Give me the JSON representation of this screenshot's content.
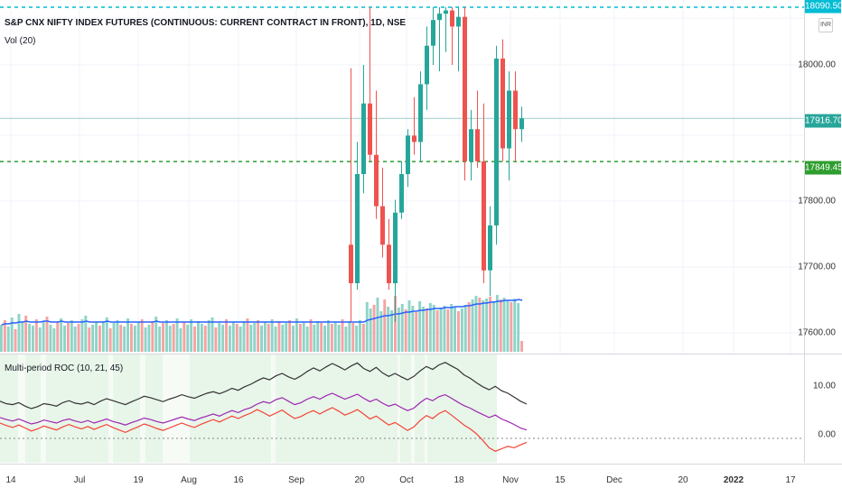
{
  "header": {
    "title": "S&P CNX NIFTY INDEX FUTURES (CONTINUOUS: CURRENT CONTRACT IN FRONT), 1D, NSE",
    "volume_label": "Vol (20)",
    "roc_label": "Multi-period ROC (10, 21, 45)",
    "currency": "INR"
  },
  "price_scale": {
    "labels": [
      "18000.00",
      "17800.00",
      "17700.00",
      "17600.00"
    ],
    "top_label": "18090.50",
    "last_price": "17916.70",
    "dotted_level": "17849.45"
  },
  "roc_scale": {
    "labels": [
      "10.00",
      "0.00"
    ]
  },
  "time_axis": {
    "labels": [
      "14",
      "Jul",
      "19",
      "Aug",
      "16",
      "Sep",
      "20",
      "Oct",
      "18",
      "Nov",
      "15",
      "Dec",
      "20",
      "2022",
      "17"
    ]
  },
  "colors": {
    "up": "#26a69a",
    "down": "#ef5350",
    "vol_up": "#8fd3c8",
    "vol_down": "#f5a3a1",
    "vol_ma": "#2962ff",
    "last_price_bg": "#26a69a",
    "dotted_green": "#2e9e2e",
    "dotted_cyan": "#00bcd4",
    "roc_black": "#333333",
    "roc_purple": "#9c27b0",
    "roc_red": "#f44336",
    "roc_zone": "#e8f5e9"
  },
  "chart_data": {
    "type": "candlestick",
    "price_range": [
      17570,
      18090
    ],
    "candles": [
      {
        "o": 17720,
        "h": 17995,
        "l": 17600,
        "c": 17660
      },
      {
        "o": 17660,
        "h": 17880,
        "l": 17650,
        "c": 17830
      },
      {
        "o": 17830,
        "h": 18000,
        "l": 17800,
        "c": 17940
      },
      {
        "o": 17940,
        "h": 18090,
        "l": 17850,
        "c": 17860
      },
      {
        "o": 17860,
        "h": 17960,
        "l": 17760,
        "c": 17780
      },
      {
        "o": 17780,
        "h": 17840,
        "l": 17700,
        "c": 17720
      },
      {
        "o": 17720,
        "h": 17760,
        "l": 17650,
        "c": 17660
      },
      {
        "o": 17660,
        "h": 17790,
        "l": 17600,
        "c": 17770
      },
      {
        "o": 17770,
        "h": 17850,
        "l": 17760,
        "c": 17830
      },
      {
        "o": 17830,
        "h": 17900,
        "l": 17810,
        "c": 17890
      },
      {
        "o": 17890,
        "h": 17950,
        "l": 17860,
        "c": 17880
      },
      {
        "o": 17880,
        "h": 17990,
        "l": 17850,
        "c": 17970
      },
      {
        "o": 17970,
        "h": 18060,
        "l": 17930,
        "c": 18030
      },
      {
        "o": 18030,
        "h": 18090,
        "l": 18000,
        "c": 18070
      },
      {
        "o": 18070,
        "h": 18090,
        "l": 17990,
        "c": 18080
      },
      {
        "o": 18080,
        "h": 18090,
        "l": 18020,
        "c": 18085
      },
      {
        "o": 18085,
        "h": 18090,
        "l": 18000,
        "c": 18060
      },
      {
        "o": 18060,
        "h": 18090,
        "l": 17990,
        "c": 18075
      },
      {
        "o": 18075,
        "h": 18090,
        "l": 17820,
        "c": 17850
      },
      {
        "o": 17850,
        "h": 17930,
        "l": 17820,
        "c": 17900
      },
      {
        "o": 17900,
        "h": 17960,
        "l": 17840,
        "c": 17850
      },
      {
        "o": 17850,
        "h": 17940,
        "l": 17660,
        "c": 17680
      },
      {
        "o": 17680,
        "h": 17780,
        "l": 17640,
        "c": 17750
      },
      {
        "o": 17750,
        "h": 18030,
        "l": 17720,
        "c": 18010
      },
      {
        "o": 18010,
        "h": 18040,
        "l": 17850,
        "c": 17870
      },
      {
        "o": 17870,
        "h": 17990,
        "l": 17820,
        "c": 17960
      },
      {
        "o": 17960,
        "h": 17990,
        "l": 17850,
        "c": 17900
      },
      {
        "o": 17900,
        "h": 17935,
        "l": 17880,
        "c": 17916.7
      }
    ],
    "volume": {
      "range": [
        0,
        100
      ],
      "bars": [
        30,
        35,
        28,
        38,
        25,
        42,
        33,
        40,
        31,
        29,
        36,
        27,
        34,
        39,
        30,
        26,
        33,
        37,
        29,
        32,
        35,
        28,
        31,
        36,
        40,
        27,
        30,
        33,
        29,
        34,
        38,
        26,
        32,
        35,
        30,
        28,
        37,
        31,
        29,
        33,
        36,
        27,
        30,
        34,
        39,
        28,
        32,
        35,
        29,
        31,
        37,
        26,
        33,
        30,
        36,
        28,
        34,
        31,
        29,
        35,
        38,
        27,
        32,
        30,
        36,
        29,
        33,
        31,
        28,
        34,
        37,
        30,
        32,
        35,
        29,
        33,
        31,
        36,
        28,
        34,
        30,
        32,
        35,
        29,
        37,
        31,
        33,
        28,
        36,
        30,
        34,
        32,
        29,
        35,
        31,
        33,
        30,
        36,
        28,
        34,
        32,
        29,
        35,
        31,
        55,
        48,
        52,
        60,
        45,
        58,
        50,
        46,
        62,
        49,
        53,
        47,
        57,
        51,
        44,
        56,
        50,
        48,
        54,
        52,
        46,
        49,
        51,
        47,
        53,
        50,
        45,
        48,
        52,
        55,
        58,
        62,
        60,
        57,
        59,
        61,
        56,
        63,
        58,
        60,
        57,
        55,
        59,
        54,
        12
      ],
      "ma": [
        30,
        31,
        31,
        32,
        32,
        33,
        33,
        34,
        33,
        33,
        33,
        33,
        34,
        34,
        33,
        33,
        33,
        34,
        33,
        33,
        33,
        33,
        33,
        33,
        34,
        33,
        33,
        33,
        33,
        33,
        34,
        33,
        33,
        33,
        33,
        33,
        33,
        33,
        33,
        33,
        33,
        33,
        33,
        33,
        34,
        33,
        33,
        33,
        33,
        33,
        33,
        33,
        33,
        33,
        33,
        33,
        33,
        33,
        33,
        33,
        33,
        33,
        33,
        33,
        33,
        33,
        33,
        33,
        33,
        33,
        33,
        33,
        33,
        33,
        33,
        33,
        33,
        33,
        33,
        33,
        33,
        33,
        33,
        33,
        33,
        33,
        33,
        33,
        33,
        33,
        33,
        33,
        33,
        33,
        33,
        33,
        33,
        33,
        33,
        33,
        33,
        33,
        33,
        33,
        35,
        36,
        37,
        38,
        39,
        40,
        40,
        41,
        42,
        42,
        43,
        44,
        44,
        45,
        45,
        46,
        46,
        47,
        47,
        48,
        48,
        48,
        49,
        49,
        49,
        50,
        50,
        50,
        51,
        51,
        52,
        53,
        53,
        54,
        54,
        55,
        55,
        56,
        56,
        57,
        57,
        57,
        57,
        58,
        57
      ]
    },
    "roc": {
      "range": [
        -4,
        16
      ],
      "zero": 0,
      "series": [
        {
          "values": [
            7.5,
            7,
            6.8,
            7.2,
            6.5,
            6,
            6.4,
            7,
            6.8,
            6.5,
            7.2,
            7.6,
            7.1,
            6.9,
            7.3,
            6.8,
            7.5,
            8,
            7.6,
            7.2,
            6.8,
            7.4,
            7.9,
            8.5,
            8.2,
            7.8,
            7.4,
            7.9,
            8.3,
            8.8,
            8.4,
            8.1,
            8.6,
            9.1,
            9.4,
            9,
            9.5,
            10.1,
            9.7,
            10.4,
            10.9,
            11.6,
            12.2,
            11.8,
            12.6,
            13.1,
            12.4,
            11.9,
            12.6,
            13.5,
            14.2,
            13.6,
            14.4,
            15.1,
            14.5,
            13.8,
            14.6,
            15.2,
            14.1,
            13.5,
            14.3,
            13.2,
            12.5,
            13.1,
            12.4,
            11.8,
            12.5,
            13.6,
            14.5,
            13.9,
            14.8,
            15.3,
            14.6,
            13.9,
            12.8,
            12.1,
            11.2,
            10.4,
            9.8,
            10.5,
            9.6,
            9.1,
            8.3,
            7.5,
            6.9
          ]
        },
        {
          "values": [
            4.2,
            3.8,
            3.5,
            3.9,
            3.4,
            2.9,
            3.2,
            3.7,
            3.4,
            3.1,
            3.6,
            3.9,
            3.5,
            3.2,
            3.6,
            3.1,
            3.5,
            3.9,
            3.4,
            3.1,
            2.7,
            3.2,
            3.6,
            4.1,
            3.8,
            3.4,
            3.1,
            3.5,
            3.9,
            4.3,
            3.9,
            3.6,
            4.1,
            4.5,
            4.9,
            4.5,
            5.1,
            5.6,
            5.2,
            5.8,
            6.2,
            6.9,
            7.4,
            7.1,
            7.8,
            8.2,
            7.5,
            6.8,
            7.2,
            7.9,
            8.4,
            7.9,
            8.6,
            9.1,
            8.5,
            7.9,
            8.4,
            8.9,
            8.1,
            7.4,
            7.9,
            7.1,
            6.5,
            6.9,
            6.2,
            5.6,
            6.1,
            7.2,
            8.1,
            7.6,
            8.4,
            8.8,
            8.1,
            7.3,
            6.6,
            6.1,
            5.4,
            4.8,
            4.2,
            4.7,
            3.9,
            3.4,
            2.8,
            2.1,
            1.7
          ]
        },
        {
          "values": [
            3.1,
            2.6,
            2.2,
            2.7,
            2.1,
            1.5,
            1.9,
            2.5,
            2.1,
            1.7,
            2.3,
            2.8,
            2.3,
            1.9,
            2.4,
            1.8,
            2.3,
            2.8,
            2.2,
            1.7,
            1.2,
            1.8,
            2.3,
            2.9,
            2.5,
            2,
            1.6,
            2.1,
            2.6,
            3.1,
            2.6,
            2.2,
            2.8,
            3.3,
            3.8,
            3.3,
            3.9,
            4.5,
            4,
            4.6,
            5.1,
            5.8,
            5.2,
            4.5,
            5.1,
            5.7,
            4.8,
            4,
            4.4,
            5.1,
            5.6,
            4.9,
            5.6,
            6.2,
            5.5,
            4.7,
            5.2,
            5.8,
            4.9,
            3.9,
            4.5,
            3.6,
            2.7,
            3.2,
            2.4,
            1.6,
            2.3,
            3.6,
            4.6,
            4,
            5,
            5.6,
            4.7,
            3.7,
            2.7,
            1.9,
            0.9,
            -0.4,
            -1.9,
            -2.6,
            -2.1,
            -1.6,
            -1.9,
            -1.3,
            -0.8
          ]
        }
      ]
    }
  }
}
